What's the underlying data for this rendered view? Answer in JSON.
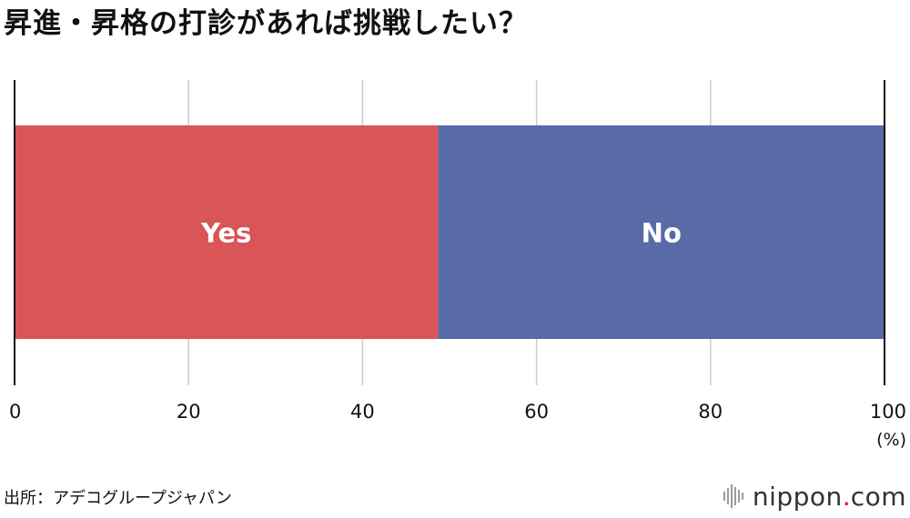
{
  "title": "昇進・昇格の打診があれば挑戦したい？",
  "chart_data": {
    "type": "bar",
    "orientation": "horizontal-stacked",
    "title": "昇進・昇格の打診があれば挑戦したい？",
    "xlim": [
      0,
      100
    ],
    "x_ticks": [
      "0",
      "20",
      "40",
      "60",
      "80",
      "100"
    ],
    "x_unit": "(%)",
    "grid": true,
    "series": [
      {
        "name": "Yes",
        "value": 48.7,
        "color": "#d95557"
      },
      {
        "name": "No",
        "value": 51.3,
        "color": "#586ba7"
      }
    ]
  },
  "footer": {
    "source": "出所：アデコグループジャパン",
    "brand": {
      "name": "nippon",
      "dot": ".",
      "tld": "com"
    }
  },
  "colors": {
    "grid": "#cccccc",
    "axis": "#111111",
    "yes": "#d95557",
    "no": "#586ba7",
    "brand_accent": "#e60012"
  }
}
